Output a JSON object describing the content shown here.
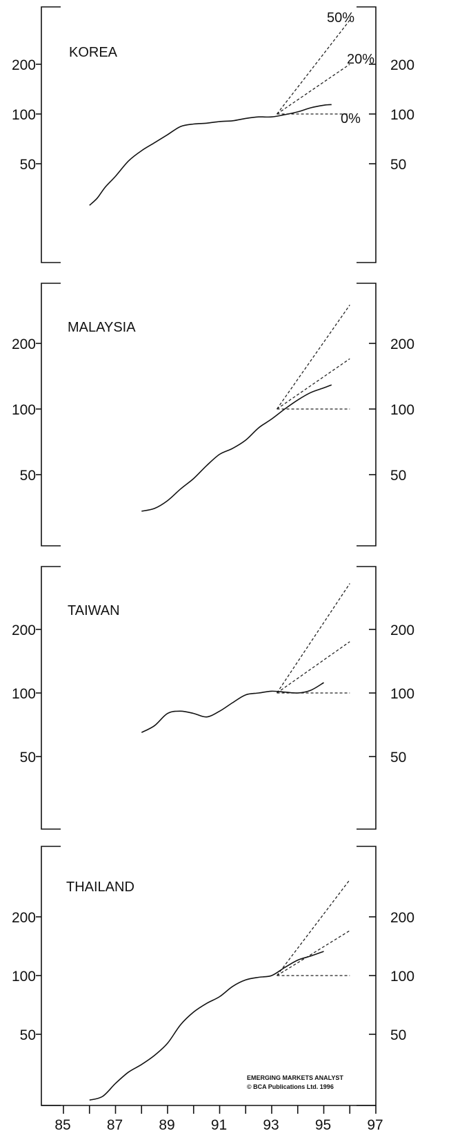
{
  "colors": {
    "line": "#111111",
    "background": "#ffffff"
  },
  "chart_data": {
    "type": "line",
    "x_ticks": [
      "85",
      "87",
      "89",
      "91",
      "93",
      "95",
      "97"
    ],
    "xlim": [
      1985,
      1997
    ],
    "y_scale": "log",
    "panels": [
      {
        "title": "KOREA",
        "y_ticks": [
          "50",
          "100",
          "200"
        ],
        "ylim": [
          27,
          380
        ],
        "series": {
          "x": [
            1986.0,
            1986.3,
            1986.6,
            1987.0,
            1987.5,
            1988.0,
            1988.5,
            1989.0,
            1989.5,
            1990.0,
            1990.5,
            1991.0,
            1991.5,
            1992.0,
            1992.5,
            1993.0,
            1993.5,
            1994.0,
            1994.5,
            1995.0,
            1995.3
          ],
          "values": [
            28,
            31,
            36,
            42,
            52,
            60,
            67,
            75,
            84,
            87,
            88,
            90,
            91,
            94,
            96,
            96,
            99,
            103,
            109,
            113,
            114
          ]
        },
        "scenarios": [
          {
            "label": "50%",
            "x": [
              1993.2,
              1996.0
            ],
            "values": [
              100,
              370
            ]
          },
          {
            "label": "20%",
            "x": [
              1993.2,
              1996.0
            ],
            "values": [
              100,
              200
            ]
          },
          {
            "label": "0%",
            "x": [
              1993.2,
              1996.0
            ],
            "values": [
              100,
              100
            ]
          }
        ]
      },
      {
        "title": "MALAYSIA",
        "y_ticks": [
          "50",
          "100",
          "200"
        ],
        "ylim": [
          27,
          380
        ],
        "series": {
          "x": [
            1988.0,
            1988.5,
            1989.0,
            1989.5,
            1990.0,
            1990.5,
            1991.0,
            1991.5,
            1992.0,
            1992.5,
            1993.0,
            1993.5,
            1994.0,
            1994.5,
            1995.0,
            1995.3
          ],
          "values": [
            34,
            35,
            38,
            43,
            48,
            55,
            62,
            66,
            72,
            82,
            90,
            100,
            110,
            119,
            125,
            129
          ]
        },
        "scenarios": [
          {
            "label": "50%",
            "x": [
              1993.2,
              1996.0
            ],
            "values": [
              100,
              300
            ]
          },
          {
            "label": "20%",
            "x": [
              1993.2,
              1996.0
            ],
            "values": [
              100,
              170
            ]
          },
          {
            "label": "0%",
            "x": [
              1993.2,
              1996.0
            ],
            "values": [
              100,
              100
            ]
          }
        ]
      },
      {
        "title": "TAIWAN",
        "y_ticks": [
          "50",
          "100",
          "200"
        ],
        "ylim": [
          27,
          380
        ],
        "series": {
          "x": [
            1988.0,
            1988.5,
            1989.0,
            1989.5,
            1990.0,
            1990.5,
            1991.0,
            1991.5,
            1992.0,
            1992.5,
            1993.0,
            1993.5,
            1994.0,
            1994.5,
            1995.0
          ],
          "values": [
            65,
            70,
            80,
            82,
            80,
            77,
            82,
            90,
            98,
            100,
            102,
            101,
            100,
            103,
            112
          ]
        },
        "scenarios": [
          {
            "label": "50%",
            "x": [
              1993.2,
              1996.0
            ],
            "values": [
              100,
              330
            ]
          },
          {
            "label": "20%",
            "x": [
              1993.2,
              1996.0
            ],
            "values": [
              100,
              175
            ]
          },
          {
            "label": "0%",
            "x": [
              1993.2,
              1996.0
            ],
            "values": [
              100,
              100
            ]
          }
        ]
      },
      {
        "title": "THAILAND",
        "y_ticks": [
          "50",
          "100",
          "200"
        ],
        "ylim": [
          22,
          380
        ],
        "series": {
          "x": [
            1986.0,
            1986.5,
            1987.0,
            1987.5,
            1988.0,
            1988.5,
            1989.0,
            1989.5,
            1990.0,
            1990.5,
            1991.0,
            1991.5,
            1992.0,
            1992.5,
            1993.0,
            1993.5,
            1994.0,
            1994.5,
            1995.0
          ],
          "values": [
            23,
            24,
            28,
            32,
            35,
            39,
            45,
            56,
            65,
            72,
            78,
            88,
            95,
            98,
            100,
            110,
            120,
            126,
            133
          ]
        },
        "scenarios": [
          {
            "label": "50%",
            "x": [
              1993.2,
              1996.0
            ],
            "values": [
              100,
              310
            ]
          },
          {
            "label": "20%",
            "x": [
              1993.2,
              1996.0
            ],
            "values": [
              100,
              170
            ]
          },
          {
            "label": "0%",
            "x": [
              1993.2,
              1996.0
            ],
            "values": [
              100,
              100
            ]
          }
        ]
      }
    ],
    "scenario_labels_shown": [
      "50%",
      "20%",
      "0%"
    ],
    "credit": [
      "EMERGING MARKETS ANALYST",
      "© BCA Publications Ltd. 1996"
    ]
  }
}
